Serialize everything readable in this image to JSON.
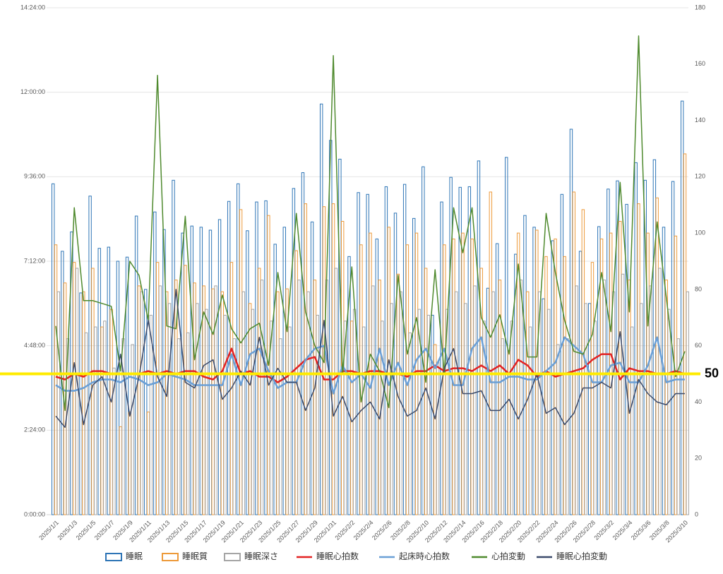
{
  "chart_data": {
    "type": "combo",
    "categories": [
      "2025/1/1",
      null,
      "2025/1/3",
      null,
      "2025/1/5",
      null,
      "2025/1/7",
      null,
      "2025/1/9",
      null,
      "2025/1/11",
      null,
      "2025/1/13",
      null,
      "2025/1/15",
      null,
      "2025/1/17",
      null,
      "2025/1/19",
      null,
      "2025/1/21",
      null,
      "2025/1/23",
      null,
      "2025/1/25",
      null,
      "2025/1/27",
      null,
      "2025/1/29",
      null,
      "2025/1/31",
      null,
      "2025/2/2",
      null,
      "2025/2/4",
      null,
      "2025/2/6",
      null,
      "2025/2/8",
      null,
      "2025/2/10",
      null,
      "2025/2/12",
      null,
      "2025/2/14",
      null,
      "2025/2/16",
      null,
      "2025/2/18",
      null,
      "2025/2/20",
      null,
      "2025/2/22",
      null,
      "2025/2/24",
      null,
      "2025/2/26",
      null,
      "2025/2/28",
      null,
      "2025/3/2",
      null,
      "2025/3/4",
      null,
      "2025/3/6",
      null,
      "2025/3/8",
      null,
      "2025/3/10"
    ],
    "ylim": [
      0,
      864
    ],
    "yticks": [
      {
        "value": 0,
        "label": "0:00:00"
      },
      {
        "value": 144,
        "label": "2:24:00"
      },
      {
        "value": 288,
        "label": "4:48:00"
      },
      {
        "value": 432,
        "label": "7:12:00"
      },
      {
        "value": 576,
        "label": "9:36:00"
      },
      {
        "value": 720,
        "label": "12:00:00"
      },
      {
        "value": 864,
        "label": "14:24:00"
      }
    ],
    "y2lim": [
      0,
      180
    ],
    "y2ticks": [
      0,
      20,
      40,
      60,
      80,
      100,
      120,
      140,
      160,
      180
    ],
    "grid": true,
    "reference_line": {
      "value": 50,
      "color": "#ffeb00"
    },
    "series": [
      {
        "name": "睡眠",
        "type": "bar",
        "color": "#2e75b6",
        "values": [
          564,
          449,
          482,
          378,
          543,
          454,
          456,
          432,
          439,
          509,
          384,
          516,
          486,
          570,
          480,
          492,
          490,
          485,
          503,
          534,
          564,
          484,
          533,
          535,
          461,
          490,
          556,
          583,
          499,
          700,
          638,
          606,
          440,
          549,
          546,
          470,
          559,
          514,
          563,
          505,
          593,
          340,
          533,
          575,
          558,
          559,
          603,
          386,
          462,
          609,
          444,
          510,
          490,
          368,
          467,
          546,
          657,
          449,
          360,
          491,
          555,
          569,
          529,
          600,
          570,
          605,
          490,
          568,
          705
        ]
      },
      {
        "name": "睡眠質",
        "type": "bar",
        "color": "#ed9a3a",
        "values": [
          460,
          395,
          430,
          380,
          420,
          320,
          350,
          150,
          175,
          390,
          175,
          430,
          380,
          400,
          425,
          395,
          390,
          385,
          380,
          430,
          520,
          360,
          420,
          510,
          380,
          385,
          450,
          530,
          400,
          525,
          530,
          500,
          330,
          460,
          480,
          400,
          490,
          410,
          460,
          480,
          420,
          290,
          460,
          470,
          480,
          470,
          420,
          550,
          400,
          280,
          480,
          380,
          485,
          440,
          470,
          440,
          550,
          520,
          430,
          470,
          480,
          500,
          400,
          530,
          480,
          540,
          400,
          475,
          615
        ]
      },
      {
        "name": "睡眠深さ",
        "type": "bar",
        "color": "#a5a5a5",
        "values": [
          380,
          300,
          420,
          310,
          320,
          330,
          250,
          300,
          290,
          380,
          340,
          390,
          360,
          300,
          310,
          360,
          350,
          390,
          340,
          300,
          380,
          350,
          400,
          330,
          300,
          320,
          400,
          380,
          340,
          400,
          420,
          330,
          350,
          320,
          390,
          330,
          360,
          380,
          310,
          350,
          340,
          260,
          350,
          380,
          360,
          390,
          330,
          380,
          300,
          330,
          400,
          320,
          380,
          350,
          290,
          300,
          390,
          360,
          330,
          400,
          380,
          410,
          320,
          360,
          390,
          420,
          350,
          300,
          380
        ]
      },
      {
        "name": "睡眠心拍数",
        "type": "line",
        "axis": "y2",
        "color": "#e32222",
        "width": 2.5,
        "values": [
          49,
          48,
          50,
          49,
          51,
          51,
          50,
          50,
          50,
          50,
          51,
          50,
          51,
          50,
          51,
          51,
          49,
          48,
          51,
          59,
          50,
          51,
          49,
          49,
          47,
          49,
          52,
          55,
          56,
          48,
          48,
          51,
          51,
          50,
          51,
          51,
          50,
          50,
          49,
          51,
          51,
          53,
          51,
          52,
          52,
          51,
          53,
          51,
          53,
          50,
          55,
          53,
          49,
          51,
          49,
          50,
          51,
          52,
          55,
          57,
          57,
          48,
          52,
          51,
          51,
          50,
          50,
          51,
          50
        ]
      },
      {
        "name": "起床時心拍数",
        "type": "line",
        "axis": "y2",
        "color": "#6a9fd6",
        "width": 2.5,
        "values": [
          46,
          44,
          44,
          45,
          47,
          48,
          48,
          47,
          49,
          48,
          46,
          47,
          50,
          49,
          48,
          46,
          46,
          46,
          46,
          57,
          46,
          57,
          59,
          51,
          45,
          47,
          47,
          55,
          59,
          60,
          43,
          53,
          47,
          50,
          45,
          59,
          46,
          54,
          46,
          55,
          59,
          52,
          59,
          46,
          46,
          59,
          63,
          47,
          47,
          49,
          49,
          48,
          48,
          51,
          54,
          63,
          60,
          57,
          47,
          47,
          53,
          54,
          47,
          47,
          53,
          63,
          47,
          48,
          48
        ]
      },
      {
        "name": "心拍変動",
        "type": "line",
        "axis": "y2",
        "color": "#4f8a2e",
        "width": 1.5,
        "values": [
          67,
          37,
          109,
          76,
          76,
          75,
          74,
          51,
          90,
          85,
          69,
          156,
          67,
          66,
          106,
          55,
          72,
          64,
          78,
          66,
          61,
          66,
          68,
          53,
          86,
          65,
          107,
          72,
          60,
          54,
          163,
          50,
          88,
          40,
          57,
          51,
          38,
          85,
          57,
          70,
          47,
          87,
          50,
          109,
          93,
          109,
          70,
          63,
          71,
          57,
          89,
          56,
          56,
          107,
          86,
          69,
          58,
          57,
          64,
          86,
          65,
          118,
          72,
          170,
          67,
          104,
          77,
          49,
          58
        ]
      },
      {
        "name": "睡眠心拍変動",
        "type": "line",
        "axis": "y2",
        "color": "#3b4a6b",
        "width": 1.5,
        "values": [
          35,
          31,
          54,
          32,
          46,
          49,
          40,
          57,
          35,
          49,
          69,
          49,
          42,
          80,
          47,
          45,
          53,
          55,
          41,
          45,
          51,
          46,
          63,
          46,
          52,
          47,
          47,
          37,
          45,
          69,
          35,
          42,
          33,
          37,
          40,
          34,
          55,
          42,
          35,
          37,
          45,
          34,
          52,
          59,
          43,
          43,
          44,
          37,
          37,
          41,
          34,
          41,
          50,
          36,
          38,
          32,
          36,
          45,
          45,
          47,
          45,
          65,
          36,
          48,
          43,
          40,
          39,
          43,
          43
        ]
      }
    ]
  }
}
